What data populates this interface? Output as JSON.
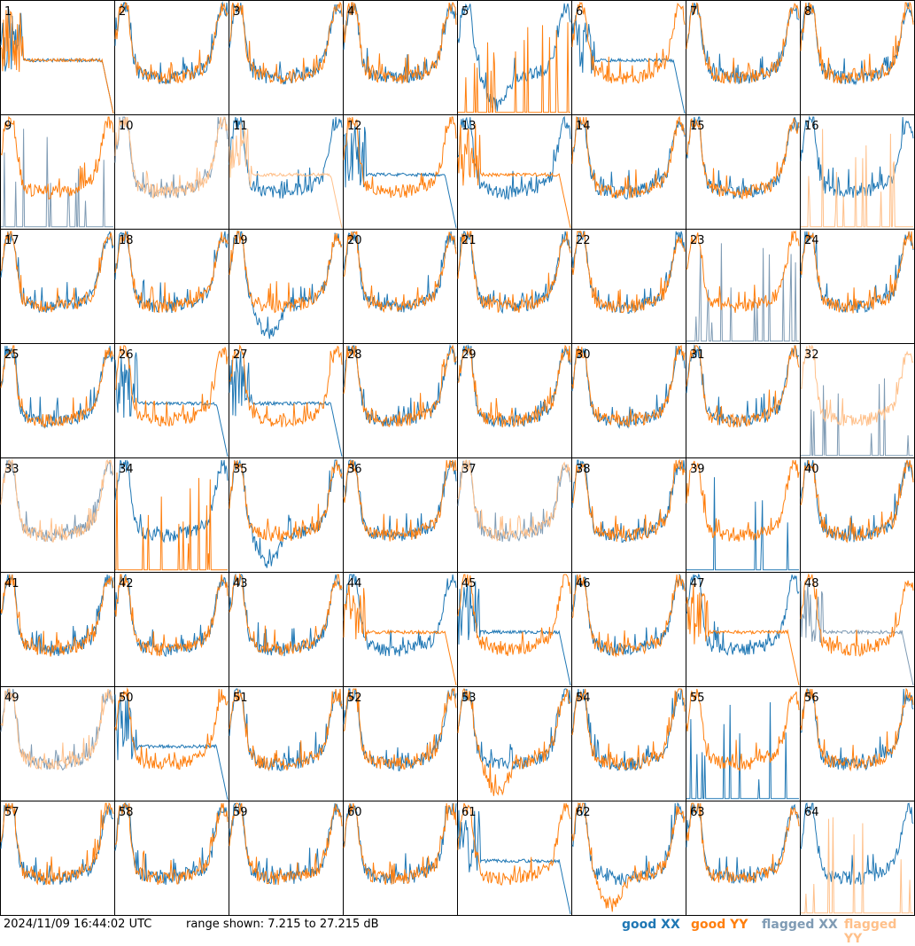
{
  "footer": {
    "timestamp": "2024/11/09 16:44:02 UTC",
    "range": "range shown: 7.215 to 27.215 dB",
    "legend": {
      "good_xx": "good XX",
      "good_yy": "good YY",
      "flagged_xx": "flagged XX",
      "flagged_yy": "flagged YY"
    }
  },
  "colors": {
    "good_xx": "#1f77b4",
    "good_yy": "#ff7f0e",
    "flagged_xx": "#7f9bb4",
    "flagged_yy": "#ffc08a"
  },
  "chart_data": {
    "type": "line",
    "ylim": [
      7.215,
      27.215
    ],
    "grid_rows": 8,
    "grid_cols": 8,
    "panels": [
      {
        "label": "1",
        "xx": "good",
        "yy": "good",
        "xx_shape": "rolloff",
        "yy_shape": "rolloff"
      },
      {
        "label": "2",
        "xx": "good",
        "yy": "good",
        "xx_shape": "normal",
        "yy_shape": "normal"
      },
      {
        "label": "3",
        "xx": "good",
        "yy": "good",
        "xx_shape": "normal",
        "yy_shape": "normal"
      },
      {
        "label": "4",
        "xx": "good",
        "yy": "good",
        "xx_shape": "normal",
        "yy_shape": "normal"
      },
      {
        "label": "5",
        "xx": "good",
        "yy": "good",
        "xx_shape": "dip",
        "yy_shape": "spikes"
      },
      {
        "label": "6",
        "xx": "good",
        "yy": "good",
        "xx_shape": "rolloff",
        "yy_shape": "normal"
      },
      {
        "label": "7",
        "xx": "good",
        "yy": "good",
        "xx_shape": "normal",
        "yy_shape": "normal"
      },
      {
        "label": "8",
        "xx": "good",
        "yy": "good",
        "xx_shape": "normal",
        "yy_shape": "normal"
      },
      {
        "label": "9",
        "xx": "flagged",
        "yy": "good",
        "xx_shape": "spikes",
        "yy_shape": "normal"
      },
      {
        "label": "10",
        "xx": "flagged",
        "yy": "flagged",
        "xx_shape": "normal",
        "yy_shape": "normal"
      },
      {
        "label": "11",
        "xx": "good",
        "yy": "flagged",
        "xx_shape": "normal",
        "yy_shape": "rolloff"
      },
      {
        "label": "12",
        "xx": "good",
        "yy": "good",
        "xx_shape": "rolloff",
        "yy_shape": "normal"
      },
      {
        "label": "13",
        "xx": "good",
        "yy": "good",
        "xx_shape": "normal",
        "yy_shape": "rolloff"
      },
      {
        "label": "14",
        "xx": "good",
        "yy": "good",
        "xx_shape": "normal",
        "yy_shape": "normal"
      },
      {
        "label": "15",
        "xx": "good",
        "yy": "good",
        "xx_shape": "normal",
        "yy_shape": "normal"
      },
      {
        "label": "16",
        "xx": "good",
        "yy": "flagged",
        "xx_shape": "normal",
        "yy_shape": "spikes"
      },
      {
        "label": "17",
        "xx": "good",
        "yy": "good",
        "xx_shape": "normal",
        "yy_shape": "normal"
      },
      {
        "label": "18",
        "xx": "good",
        "yy": "good",
        "xx_shape": "normal",
        "yy_shape": "normal"
      },
      {
        "label": "19",
        "xx": "good",
        "yy": "good",
        "xx_shape": "dip",
        "yy_shape": "normal"
      },
      {
        "label": "20",
        "xx": "good",
        "yy": "good",
        "xx_shape": "normal",
        "yy_shape": "normal"
      },
      {
        "label": "21",
        "xx": "good",
        "yy": "good",
        "xx_shape": "normal",
        "yy_shape": "normal"
      },
      {
        "label": "22",
        "xx": "good",
        "yy": "good",
        "xx_shape": "normal",
        "yy_shape": "normal"
      },
      {
        "label": "23",
        "xx": "flagged",
        "yy": "good",
        "xx_shape": "spikes",
        "yy_shape": "normal"
      },
      {
        "label": "24",
        "xx": "good",
        "yy": "good",
        "xx_shape": "normal",
        "yy_shape": "normal"
      },
      {
        "label": "25",
        "xx": "good",
        "yy": "good",
        "xx_shape": "normal",
        "yy_shape": "normal"
      },
      {
        "label": "26",
        "xx": "good",
        "yy": "good",
        "xx_shape": "rolloff",
        "yy_shape": "normal"
      },
      {
        "label": "27",
        "xx": "good",
        "yy": "good",
        "xx_shape": "rolloff",
        "yy_shape": "normal"
      },
      {
        "label": "28",
        "xx": "good",
        "yy": "good",
        "xx_shape": "normal",
        "yy_shape": "normal"
      },
      {
        "label": "29",
        "xx": "good",
        "yy": "good",
        "xx_shape": "normal",
        "yy_shape": "normal"
      },
      {
        "label": "30",
        "xx": "good",
        "yy": "good",
        "xx_shape": "normal",
        "yy_shape": "normal"
      },
      {
        "label": "31",
        "xx": "good",
        "yy": "good",
        "xx_shape": "normal",
        "yy_shape": "normal"
      },
      {
        "label": "32",
        "xx": "flagged",
        "yy": "flagged",
        "xx_shape": "spikes",
        "yy_shape": "normal"
      },
      {
        "label": "33",
        "xx": "flagged",
        "yy": "flagged",
        "xx_shape": "normal",
        "yy_shape": "normal"
      },
      {
        "label": "34",
        "xx": "good",
        "yy": "good",
        "xx_shape": "normal",
        "yy_shape": "spikes"
      },
      {
        "label": "35",
        "xx": "good",
        "yy": "good",
        "xx_shape": "dip",
        "yy_shape": "normal"
      },
      {
        "label": "36",
        "xx": "good",
        "yy": "good",
        "xx_shape": "normal",
        "yy_shape": "normal"
      },
      {
        "label": "37",
        "xx": "flagged",
        "yy": "flagged",
        "xx_shape": "normal",
        "yy_shape": "normal"
      },
      {
        "label": "38",
        "xx": "good",
        "yy": "good",
        "xx_shape": "normal",
        "yy_shape": "normal"
      },
      {
        "label": "39",
        "xx": "good",
        "yy": "good",
        "xx_shape": "spikes",
        "yy_shape": "normal"
      },
      {
        "label": "40",
        "xx": "good",
        "yy": "good",
        "xx_shape": "normal",
        "yy_shape": "normal"
      },
      {
        "label": "41",
        "xx": "good",
        "yy": "good",
        "xx_shape": "normal",
        "yy_shape": "normal"
      },
      {
        "label": "42",
        "xx": "good",
        "yy": "good",
        "xx_shape": "normal",
        "yy_shape": "normal"
      },
      {
        "label": "43",
        "xx": "good",
        "yy": "good",
        "xx_shape": "normal",
        "yy_shape": "normal"
      },
      {
        "label": "44",
        "xx": "good",
        "yy": "good",
        "xx_shape": "normal",
        "yy_shape": "rolloff"
      },
      {
        "label": "45",
        "xx": "good",
        "yy": "good",
        "xx_shape": "rolloff",
        "yy_shape": "normal"
      },
      {
        "label": "46",
        "xx": "good",
        "yy": "good",
        "xx_shape": "normal",
        "yy_shape": "normal"
      },
      {
        "label": "47",
        "xx": "good",
        "yy": "good",
        "xx_shape": "normal",
        "yy_shape": "rolloff"
      },
      {
        "label": "48",
        "xx": "flagged",
        "yy": "good",
        "xx_shape": "rolloff",
        "yy_shape": "normal"
      },
      {
        "label": "49",
        "xx": "flagged",
        "yy": "flagged",
        "xx_shape": "normal",
        "yy_shape": "normal"
      },
      {
        "label": "50",
        "xx": "good",
        "yy": "good",
        "xx_shape": "rolloff",
        "yy_shape": "normal"
      },
      {
        "label": "51",
        "xx": "good",
        "yy": "good",
        "xx_shape": "normal",
        "yy_shape": "normal"
      },
      {
        "label": "52",
        "xx": "good",
        "yy": "good",
        "xx_shape": "normal",
        "yy_shape": "normal"
      },
      {
        "label": "53",
        "xx": "good",
        "yy": "good",
        "xx_shape": "normal",
        "yy_shape": "dip"
      },
      {
        "label": "54",
        "xx": "good",
        "yy": "good",
        "xx_shape": "normal",
        "yy_shape": "normal"
      },
      {
        "label": "55",
        "xx": "good",
        "yy": "good",
        "xx_shape": "spikes",
        "yy_shape": "normal"
      },
      {
        "label": "56",
        "xx": "good",
        "yy": "good",
        "xx_shape": "normal",
        "yy_shape": "normal"
      },
      {
        "label": "57",
        "xx": "good",
        "yy": "good",
        "xx_shape": "normal",
        "yy_shape": "normal"
      },
      {
        "label": "58",
        "xx": "good",
        "yy": "good",
        "xx_shape": "normal",
        "yy_shape": "normal"
      },
      {
        "label": "59",
        "xx": "good",
        "yy": "good",
        "xx_shape": "normal",
        "yy_shape": "normal"
      },
      {
        "label": "60",
        "xx": "good",
        "yy": "good",
        "xx_shape": "normal",
        "yy_shape": "normal"
      },
      {
        "label": "61",
        "xx": "good",
        "yy": "good",
        "xx_shape": "rolloff",
        "yy_shape": "normal"
      },
      {
        "label": "62",
        "xx": "good",
        "yy": "good",
        "xx_shape": "normal",
        "yy_shape": "dip"
      },
      {
        "label": "63",
        "xx": "good",
        "yy": "good",
        "xx_shape": "normal",
        "yy_shape": "normal"
      },
      {
        "label": "64",
        "xx": "good",
        "yy": "flagged",
        "xx_shape": "normal",
        "yy_shape": "spikes"
      }
    ]
  }
}
